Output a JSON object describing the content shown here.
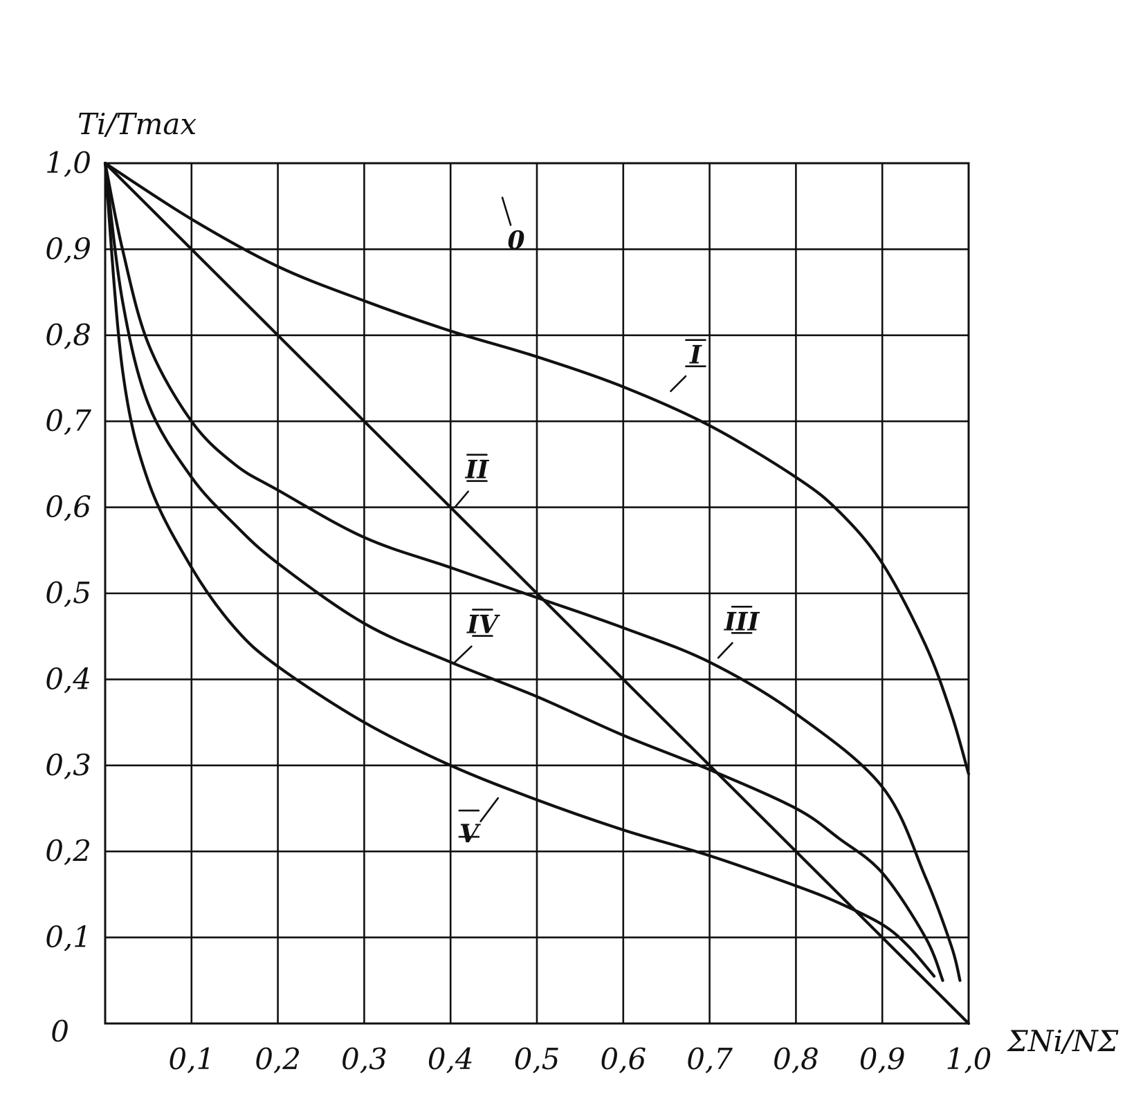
{
  "chart_data": {
    "type": "line",
    "x_label": "ΣNi/NΣ",
    "y_label": "Ti/Tmax",
    "origin_label": "0",
    "x_ticks": [
      "0,1",
      "0,2",
      "0,3",
      "0,4",
      "0,5",
      "0,6",
      "0,7",
      "0,8",
      "0,9",
      "1,0"
    ],
    "y_ticks": [
      "0,1",
      "0,2",
      "0,3",
      "0,4",
      "0,5",
      "0,6",
      "0,7",
      "0,8",
      "0,9",
      "1,0"
    ],
    "x_tick_values": [
      0.1,
      0.2,
      0.3,
      0.4,
      0.5,
      0.6,
      0.7,
      0.8,
      0.9,
      1.0
    ],
    "y_tick_values": [
      0.1,
      0.2,
      0.3,
      0.4,
      0.5,
      0.6,
      0.7,
      0.8,
      0.9,
      1.0
    ],
    "xlim": [
      0,
      1.0
    ],
    "ylim": [
      0,
      1.0
    ],
    "grid": true,
    "series": [
      {
        "name": "0",
        "x": [
          0.0,
          0.0
        ],
        "y": [
          1.0,
          1.0
        ],
        "label_anchor_x": 0.46,
        "label_anchor_y": 0.96
      },
      {
        "name": "I",
        "x": [
          0.0,
          0.1,
          0.2,
          0.3,
          0.4,
          0.5,
          0.6,
          0.7,
          0.8,
          0.85,
          0.9,
          0.95,
          0.98,
          1.0
        ],
        "y": [
          1.0,
          0.935,
          0.88,
          0.84,
          0.805,
          0.775,
          0.74,
          0.695,
          0.635,
          0.595,
          0.535,
          0.44,
          0.36,
          0.29
        ],
        "label_anchor_x": 0.655,
        "label_anchor_y": 0.735
      },
      {
        "name": "II",
        "x": [
          0.0,
          0.1,
          0.2,
          0.3,
          0.4,
          0.5,
          0.6,
          0.7,
          0.8,
          0.9,
          1.0
        ],
        "y": [
          1.0,
          0.9,
          0.8,
          0.7,
          0.6,
          0.5,
          0.4,
          0.3,
          0.2,
          0.1,
          0.0
        ],
        "label_anchor_x": 0.405,
        "label_anchor_y": 0.6
      },
      {
        "name": "III",
        "x": [
          0.0,
          0.02,
          0.05,
          0.1,
          0.15,
          0.2,
          0.3,
          0.4,
          0.5,
          0.6,
          0.7,
          0.8,
          0.9,
          0.95,
          0.98,
          0.99
        ],
        "y": [
          1.0,
          0.9,
          0.79,
          0.7,
          0.65,
          0.62,
          0.565,
          0.53,
          0.495,
          0.46,
          0.42,
          0.36,
          0.275,
          0.17,
          0.09,
          0.05
        ],
        "label_anchor_x": 0.71,
        "label_anchor_y": 0.425
      },
      {
        "name": "IV",
        "x": [
          0.0,
          0.02,
          0.05,
          0.1,
          0.15,
          0.2,
          0.3,
          0.4,
          0.5,
          0.6,
          0.7,
          0.8,
          0.85,
          0.9,
          0.95,
          0.97
        ],
        "y": [
          1.0,
          0.84,
          0.72,
          0.635,
          0.58,
          0.535,
          0.465,
          0.42,
          0.38,
          0.335,
          0.295,
          0.25,
          0.215,
          0.175,
          0.1,
          0.05
        ],
        "label_anchor_x": 0.405,
        "label_anchor_y": 0.42
      },
      {
        "name": "V",
        "x": [
          0.0,
          0.02,
          0.05,
          0.1,
          0.15,
          0.2,
          0.3,
          0.4,
          0.5,
          0.6,
          0.7,
          0.8,
          0.85,
          0.9,
          0.93,
          0.96
        ],
        "y": [
          1.0,
          0.76,
          0.63,
          0.53,
          0.46,
          0.415,
          0.35,
          0.3,
          0.26,
          0.225,
          0.195,
          0.16,
          0.14,
          0.115,
          0.09,
          0.055
        ],
        "label_anchor_x": 0.455,
        "label_anchor_y": 0.262
      }
    ]
  }
}
